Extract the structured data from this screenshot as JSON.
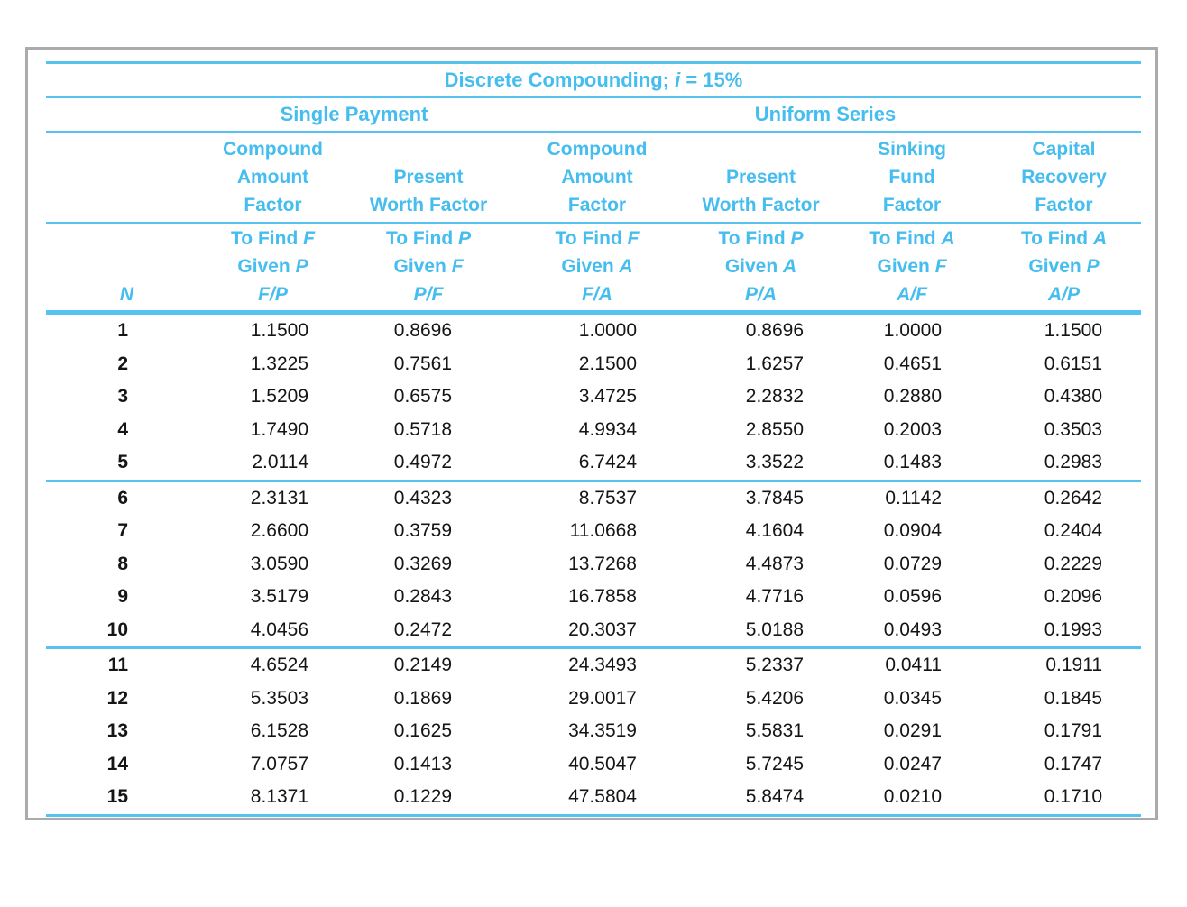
{
  "accent_color": "#45bdef",
  "rule_color": "#55c2f0",
  "frame_border_color": "#ababab",
  "table": {
    "title": {
      "before": "Discrete Compounding; ",
      "var": "i",
      "after": " = 15%"
    },
    "groups": [
      {
        "label": "Single Payment"
      },
      {
        "label": "Uniform Series"
      }
    ],
    "n_label": "N",
    "columns": [
      {
        "name_lines": [
          "Compound",
          "Amount",
          "Factor"
        ],
        "find": "To Find",
        "find_var": "F",
        "given": "Given",
        "given_var": "P",
        "ratio": "F/P"
      },
      {
        "name_lines": [
          "Present",
          "Worth Factor"
        ],
        "find": "To Find",
        "find_var": "P",
        "given": "Given",
        "given_var": "F",
        "ratio": "P/F"
      },
      {
        "name_lines": [
          "Compound",
          "Amount",
          "Factor"
        ],
        "find": "To Find",
        "find_var": "F",
        "given": "Given",
        "given_var": "A",
        "ratio": "F/A"
      },
      {
        "name_lines": [
          "Present",
          "Worth Factor"
        ],
        "find": "To Find",
        "find_var": "P",
        "given": "Given",
        "given_var": "A",
        "ratio": "P/A"
      },
      {
        "name_lines": [
          "Sinking",
          "Fund",
          "Factor"
        ],
        "find": "To Find",
        "find_var": "A",
        "given": "Given",
        "given_var": "F",
        "ratio": "A/F"
      },
      {
        "name_lines": [
          "Capital",
          "Recovery",
          "Factor"
        ],
        "find": "To Find",
        "find_var": "A",
        "given": "Given",
        "given_var": "P",
        "ratio": "A/P"
      }
    ],
    "sections": [
      {
        "rows": [
          {
            "n": "1",
            "values": [
              "1.1500",
              "0.8696",
              "1.0000",
              "0.8696",
              "1.0000",
              "1.1500"
            ]
          },
          {
            "n": "2",
            "values": [
              "1.3225",
              "0.7561",
              "2.1500",
              "1.6257",
              "0.4651",
              "0.6151"
            ]
          },
          {
            "n": "3",
            "values": [
              "1.5209",
              "0.6575",
              "3.4725",
              "2.2832",
              "0.2880",
              "0.4380"
            ]
          },
          {
            "n": "4",
            "values": [
              "1.7490",
              "0.5718",
              "4.9934",
              "2.8550",
              "0.2003",
              "0.3503"
            ]
          },
          {
            "n": "5",
            "values": [
              "2.0114",
              "0.4972",
              "6.7424",
              "3.3522",
              "0.1483",
              "0.2983"
            ]
          }
        ]
      },
      {
        "rows": [
          {
            "n": "6",
            "values": [
              "2.3131",
              "0.4323",
              "8.7537",
              "3.7845",
              "0.1142",
              "0.2642"
            ]
          },
          {
            "n": "7",
            "values": [
              "2.6600",
              "0.3759",
              "11.0668",
              "4.1604",
              "0.0904",
              "0.2404"
            ]
          },
          {
            "n": "8",
            "values": [
              "3.0590",
              "0.3269",
              "13.7268",
              "4.4873",
              "0.0729",
              "0.2229"
            ]
          },
          {
            "n": "9",
            "values": [
              "3.5179",
              "0.2843",
              "16.7858",
              "4.7716",
              "0.0596",
              "0.2096"
            ]
          },
          {
            "n": "10",
            "values": [
              "4.0456",
              "0.2472",
              "20.3037",
              "5.0188",
              "0.0493",
              "0.1993"
            ]
          }
        ]
      },
      {
        "rows": [
          {
            "n": "11",
            "values": [
              "4.6524",
              "0.2149",
              "24.3493",
              "5.2337",
              "0.0411",
              "0.1911"
            ]
          },
          {
            "n": "12",
            "values": [
              "5.3503",
              "0.1869",
              "29.0017",
              "5.4206",
              "0.0345",
              "0.1845"
            ]
          },
          {
            "n": "13",
            "values": [
              "6.1528",
              "0.1625",
              "34.3519",
              "5.5831",
              "0.0291",
              "0.1791"
            ]
          },
          {
            "n": "14",
            "values": [
              "7.0757",
              "0.1413",
              "40.5047",
              "5.7245",
              "0.0247",
              "0.1747"
            ]
          },
          {
            "n": "15",
            "values": [
              "8.1371",
              "0.1229",
              "47.5804",
              "5.8474",
              "0.0210",
              "0.1710"
            ]
          }
        ]
      }
    ]
  }
}
